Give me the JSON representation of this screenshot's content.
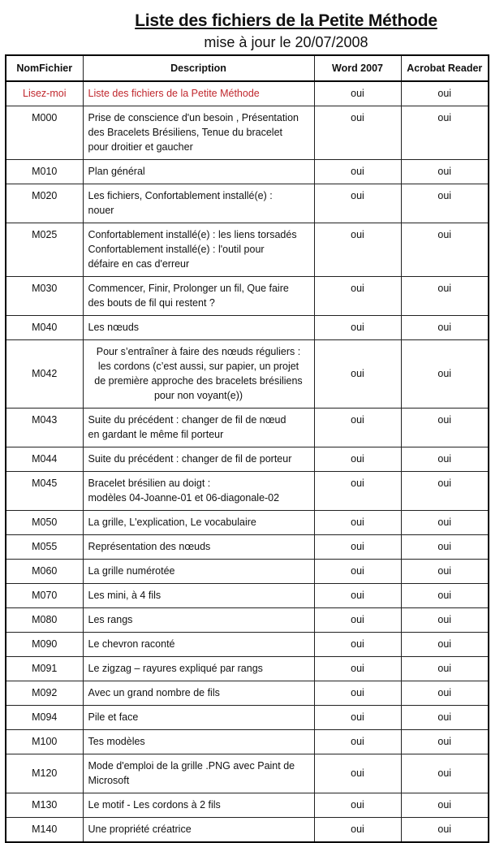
{
  "title": "Liste des fichiers de la Petite Méthode",
  "subtitle": "mise à jour le 20/07/2008",
  "accent_color": "#c0272d",
  "columns": [
    "NomFichier",
    "Description",
    "Word 2007",
    "Acrobat Reader"
  ],
  "rows": [
    {
      "name": "Lisez-moi",
      "description": "Liste des fichiers de la Petite Méthode",
      "word": "oui",
      "acrobat": "oui",
      "highlight": true
    },
    {
      "name": "M000",
      "description": "Prise de conscience d'un besoin , Présentation\ndes Bracelets Brésiliens,  Tenue du bracelet\npour droitier et gaucher",
      "word": "oui",
      "acrobat": "oui"
    },
    {
      "name": "M010",
      "description": "Plan général",
      "word": "oui",
      "acrobat": "oui"
    },
    {
      "name": "M020",
      "description": "Les fichiers,  Confortablement installé(e) :\nnouer",
      "word": "oui",
      "acrobat": "oui"
    },
    {
      "name": "M025",
      "description": "Confortablement installé(e) : les liens torsadés\nConfortablement installé(e) : l'outil pour\ndéfaire en cas d'erreur",
      "word": "oui",
      "acrobat": "oui"
    },
    {
      "name": "M030",
      "description": "Commencer, Finir, Prolonger un fil, Que faire\ndes bouts de fil qui restent ?",
      "word": "oui",
      "acrobat": "oui"
    },
    {
      "name": "M040",
      "description": "Les nœuds",
      "word": "oui",
      "acrobat": "oui"
    },
    {
      "name": "M042",
      "description": "Pour s’entraîner à faire des nœuds réguliers :\nles cordons (c’est aussi, sur papier, un projet\nde première approche des bracelets brésiliens\npour non voyant(e))",
      "word": "oui",
      "acrobat": "oui"
    },
    {
      "name": "M043",
      "description": "Suite du précédent : changer de fil de nœud\nen gardant le même fil porteur",
      "word": "oui",
      "acrobat": "oui"
    },
    {
      "name": "M044",
      "description": "Suite du précédent : changer de fil de porteur",
      "word": "oui",
      "acrobat": "oui"
    },
    {
      "name": "M045",
      "description": "Bracelet brésilien au doigt :\nmodèles 04-Joanne-01 et 06-diagonale-02",
      "word": "oui",
      "acrobat": "oui"
    },
    {
      "name": "M050",
      "description": "La grille, L'explication, Le vocabulaire",
      "word": "oui",
      "acrobat": "oui"
    },
    {
      "name": "M055",
      "description": "Représentation des nœuds",
      "word": "oui",
      "acrobat": "oui"
    },
    {
      "name": "M060",
      "description": "La grille numérotée",
      "word": "oui",
      "acrobat": "oui"
    },
    {
      "name": "M070",
      "description": "Les mini, à 4 fils",
      "word": "oui",
      "acrobat": "oui"
    },
    {
      "name": "M080",
      "description": "Les rangs",
      "word": "oui",
      "acrobat": "oui"
    },
    {
      "name": "M090",
      "description": "Le chevron raconté",
      "word": "oui",
      "acrobat": "oui"
    },
    {
      "name": "M091",
      "description": "Le zigzag – rayures expliqué par rangs",
      "word": "oui",
      "acrobat": "oui"
    },
    {
      "name": "M092",
      "description": "Avec un grand nombre de fils",
      "word": "oui",
      "acrobat": "oui"
    },
    {
      "name": "M094",
      "description": "Pile et face",
      "word": "oui",
      "acrobat": "oui"
    },
    {
      "name": "M100",
      "description": "Tes modèles",
      "word": "oui",
      "acrobat": "oui"
    },
    {
      "name": "M120",
      "description": "Mode d'emploi de la grille .PNG avec Paint de\nMicrosoft",
      "word": "oui",
      "acrobat": "oui"
    },
    {
      "name": "M130",
      "description": "Le motif - Les cordons à 2 fils",
      "word": "oui",
      "acrobat": "oui"
    },
    {
      "name": "M140",
      "description": "Une propriété créatrice",
      "word": "oui",
      "acrobat": "oui"
    }
  ]
}
